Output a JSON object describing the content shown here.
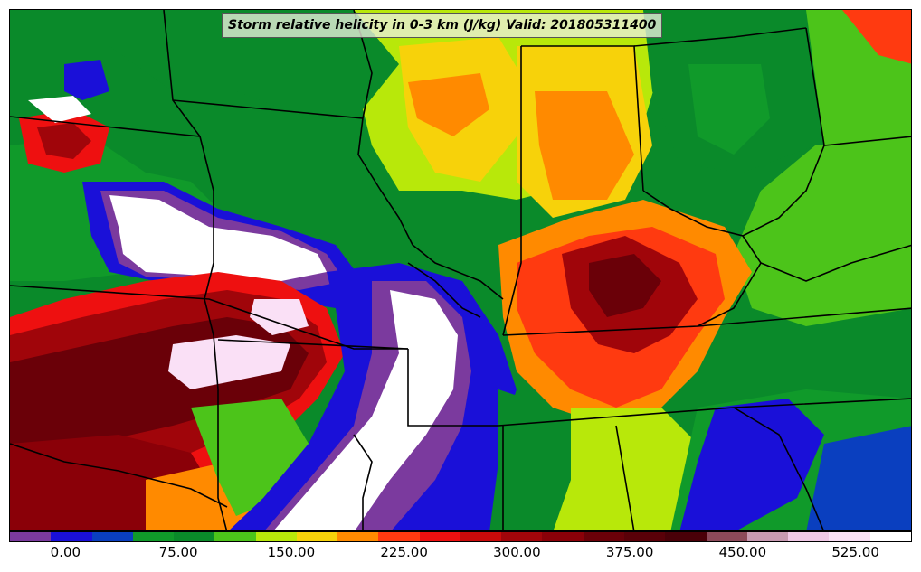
{
  "title": "Storm relative helicity in 0-3 km (J/kg) Valid: 201805311400",
  "colorbar": {
    "colors": [
      "#7b3a9e",
      "#1a10d8",
      "#0a3fbf",
      "#109a2a",
      "#0a8a2a",
      "#4cc41a",
      "#b8e80a",
      "#f7d20a",
      "#ff8a00",
      "#ff3a10",
      "#ee1010",
      "#c80a0a",
      "#a0050a",
      "#8a0008",
      "#6a0008",
      "#5a0008",
      "#4a0008",
      "#8c4a5a",
      "#c89ab2",
      "#f0c8e6",
      "#fae0f6",
      "#ffffff"
    ],
    "ticks": [
      "0.00",
      "75.00",
      "150.00",
      "225.00",
      "300.00",
      "375.00",
      "450.00",
      "525.00"
    ],
    "tick_values": [
      0,
      75,
      150,
      225,
      300,
      375,
      450,
      525
    ],
    "range": [
      -37.5,
      562.5
    ]
  },
  "map": {
    "region": "Central United States",
    "field": "storm-relative-helicity"
  }
}
